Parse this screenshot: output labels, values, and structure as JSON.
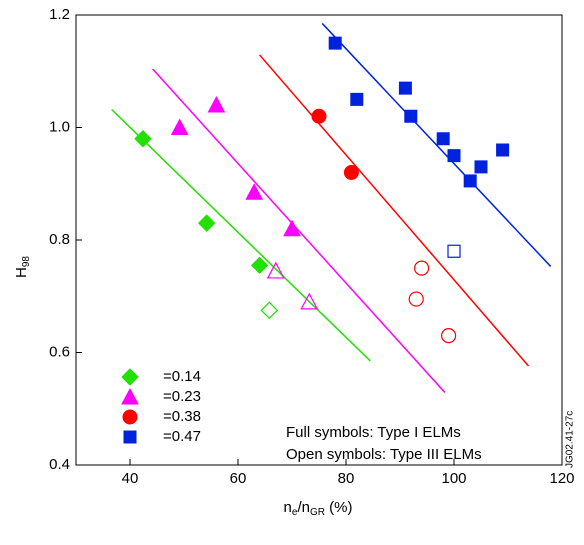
{
  "chart_data": {
    "type": "scatter",
    "x_label": {
      "main": "n",
      "sub1": "e",
      "mid": "/n",
      "sub2": "GR",
      "end": " (%)"
    },
    "y_label": {
      "main": "H",
      "sub": "98"
    },
    "xlim": [
      30,
      120
    ],
    "xticks": [
      40,
      60,
      80,
      100,
      120
    ],
    "ylim": [
      0.4,
      1.2
    ],
    "yticks": [
      0.4,
      0.6,
      0.8,
      {
        "value": 1,
        "label": "1.0"
      },
      1.2
    ],
    "annotations": [
      "Full symbols: Type I ELMs",
      "Open  symbols: Type III ELMs"
    ],
    "figure_id": "JG02.41-27c",
    "series": [
      {
        "name": "=0.14",
        "color": "#22e000",
        "marker": "diamond",
        "x": [
          42.4,
          54.2,
          64
        ],
        "values": [
          0.98,
          0.83,
          0.755
        ],
        "open_x": [
          65.8
        ],
        "open_values": [
          0.675
        ],
        "fit_x": [
          36.6,
          84.5
        ],
        "fit_values": [
          1.032,
          0.585
        ]
      },
      {
        "name": "=0.23",
        "color": "#ff00ff",
        "marker": "triangle",
        "x": [
          49.2,
          56,
          63,
          70
        ],
        "values": [
          1.0,
          1.04,
          0.885,
          0.82
        ],
        "open_x": [
          67,
          73.2
        ],
        "open_values": [
          0.745,
          0.69
        ],
        "fit_x": [
          44.2,
          98.3
        ],
        "fit_values": [
          1.104,
          0.529
        ]
      },
      {
        "name": "=0.38",
        "color": "#ff0000",
        "marker": "circle",
        "x": [
          75,
          81
        ],
        "values": [
          1.02,
          0.92
        ],
        "open_x": [
          94,
          93,
          99
        ],
        "open_values": [
          0.75,
          0.695,
          0.63
        ],
        "fit_x": [
          64,
          113.8
        ],
        "fit_values": [
          1.129,
          0.576
        ]
      },
      {
        "name": "=0.47",
        "color": "#0022dd",
        "marker": "square",
        "x": [
          78,
          82,
          91,
          92,
          98,
          100,
          105,
          103,
          109
        ],
        "values": [
          1.15,
          1.05,
          1.07,
          1.02,
          0.98,
          0.95,
          0.93,
          0.905,
          0.96
        ],
        "open_x": [
          100
        ],
        "open_values": [
          0.78
        ],
        "fit_x": [
          75.6,
          117.9
        ],
        "fit_values": [
          1.185,
          0.753
        ]
      }
    ]
  }
}
